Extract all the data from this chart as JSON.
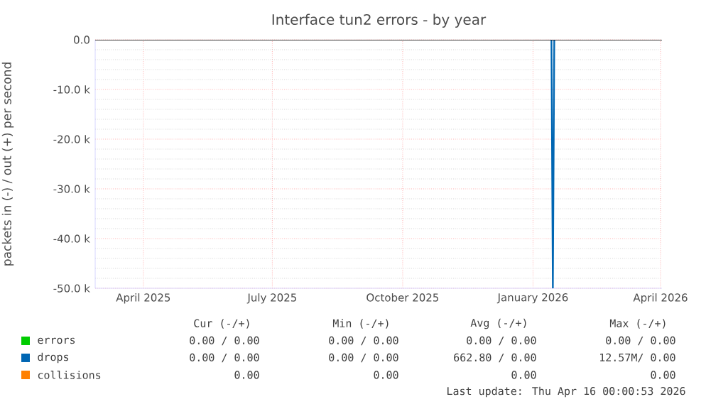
{
  "chart_data": {
    "type": "line",
    "title": "Interface tun2 errors - by year",
    "ylabel": "packets in (-) / out (+) per second",
    "xlim": [
      "2025-03-12",
      "2026-04-16"
    ],
    "xticks": [
      {
        "value": "2025-04-15",
        "label": "April 2025"
      },
      {
        "value": "2025-07-15",
        "label": "July 2025"
      },
      {
        "value": "2025-10-15",
        "label": "October 2025"
      },
      {
        "value": "2026-01-15",
        "label": "January 2026"
      },
      {
        "value": "2026-04-15",
        "label": "April 2026"
      }
    ],
    "ylim": [
      -50000,
      0
    ],
    "yticks": [
      {
        "value": 0,
        "label": "0.0"
      },
      {
        "value": -10000,
        "label": "-10.0 k"
      },
      {
        "value": -20000,
        "label": "-20.0 k"
      },
      {
        "value": -30000,
        "label": "-30.0 k"
      },
      {
        "value": -40000,
        "label": "-40.0 k"
      },
      {
        "value": -50000,
        "label": "-50.0 k"
      }
    ],
    "grid": true,
    "legend": "bottom",
    "marker": "none",
    "line_style": "solid",
    "ref_lines": [
      {
        "axis": "y",
        "value": 0,
        "color": "#000000"
      }
    ],
    "series": [
      {
        "name": "errors",
        "color": "#00cc00"
      },
      {
        "name": "drops",
        "color": "#0066b3",
        "x": [
          "2026-01-28",
          "2026-01-29",
          "2026-01-30"
        ],
        "values": [
          0,
          -50000,
          0
        ]
      },
      {
        "name": "collisions",
        "color": "#ff8000"
      }
    ],
    "annotations": [
      "Cur (-/+)",
      "Min (-/+)",
      "Avg (-/+)",
      "Max (-/+)",
      "0.00 /  0.00",
      "0.00 /  0.00",
      "0.00 /  0.00",
      "0.00 /  0.00",
      "0.00 /  0.00",
      "0.00 /  0.00",
      "662.80 /  0.00",
      "12.57M/  0.00",
      "0.00",
      "0.00",
      "0.00",
      "0.00",
      "Last update: Thu Apr 16 00:00:53 2026"
    ]
  }
}
